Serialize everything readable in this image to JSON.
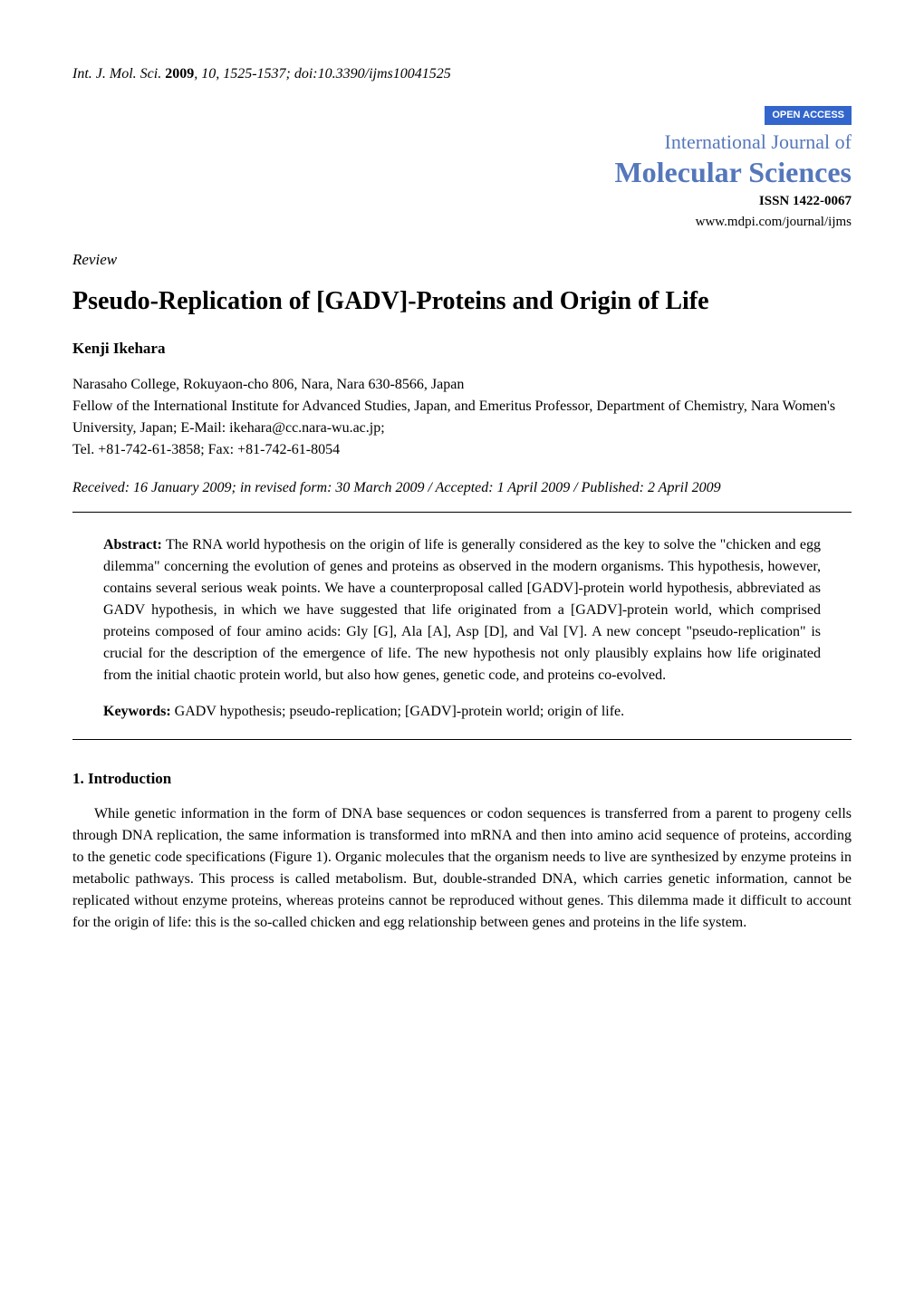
{
  "header": {
    "journal_abbrev": "Int. J. Mol. Sci.",
    "year": "2009",
    "volume": "10",
    "pages": "1525-1537",
    "doi": "doi:10.3390/ijms10041525"
  },
  "badge": {
    "open_access": "OPEN ACCESS"
  },
  "journal_block": {
    "supertitle": "International Journal of",
    "name": "Molecular Sciences",
    "issn": "ISSN 1422-0067",
    "url": "www.mdpi.com/journal/ijms"
  },
  "article_type": "Review",
  "title": "Pseudo-Replication of [GADV]-Proteins and Origin of Life",
  "author": "Kenji Ikehara",
  "affiliation": "Narasaho College, Rokuyaon-cho 806, Nara, Nara 630-8566, Japan\nFellow of the International Institute for Advanced Studies, Japan, and Emeritus Professor, Department of Chemistry, Nara Women's University, Japan; E-Mail: ikehara@cc.nara-wu.ac.jp;\nTel. +81-742-61-3858; Fax: +81-742-61-8054",
  "dates": "Received: 16 January 2009; in revised form: 30 March 2009 / Accepted: 1 April 2009 / Published: 2 April 2009",
  "abstract": {
    "label": "Abstract:",
    "text": "The RNA world hypothesis on the origin of life is generally considered as the key to solve the \"chicken and egg dilemma\" concerning the evolution of genes and proteins as observed in the modern organisms. This hypothesis, however, contains several serious weak points. We have a counterproposal called [GADV]-protein world hypothesis, abbreviated as GADV hypothesis, in which we have suggested that life originated from a [GADV]-protein world, which comprised proteins composed of four amino acids: Gly [G], Ala [A], Asp [D], and Val [V]. A new concept \"pseudo-replication\" is crucial for the description of the emergence of life. The new hypothesis not only plausibly explains how life originated from the initial chaotic protein world, but also how genes, genetic code, and proteins co-evolved."
  },
  "keywords": {
    "label": "Keywords:",
    "text": "GADV hypothesis; pseudo-replication; [GADV]-protein world; origin of life."
  },
  "section1": {
    "heading": "1. Introduction",
    "para1": "While genetic information in the form of DNA base sequences or codon sequences is transferred from a parent to progeny cells through DNA replication, the same information is transformed into mRNA and then into amino acid sequence of proteins, according to the genetic code specifications (Figure 1). Organic molecules that the organism needs to live are synthesized by enzyme proteins in metabolic pathways. This process is called metabolism. But, double-stranded DNA, which carries genetic information, cannot be replicated without enzyme proteins, whereas proteins cannot be reproduced without genes. This dilemma made it difficult to account for the origin of life: this is the so-called chicken and egg relationship between genes and proteins in the life system."
  },
  "colors": {
    "badge_bg": "#3366cc",
    "badge_fg": "#ffffff",
    "journal_color": "#5577bb",
    "text_color": "#000000",
    "background": "#ffffff",
    "rule_color": "#000000"
  },
  "typography": {
    "body_font": "Times New Roman",
    "body_size_pt": 12,
    "title_size_pt": 21,
    "journal_name_size_pt": 24,
    "journal_supertitle_size_pt": 16
  }
}
